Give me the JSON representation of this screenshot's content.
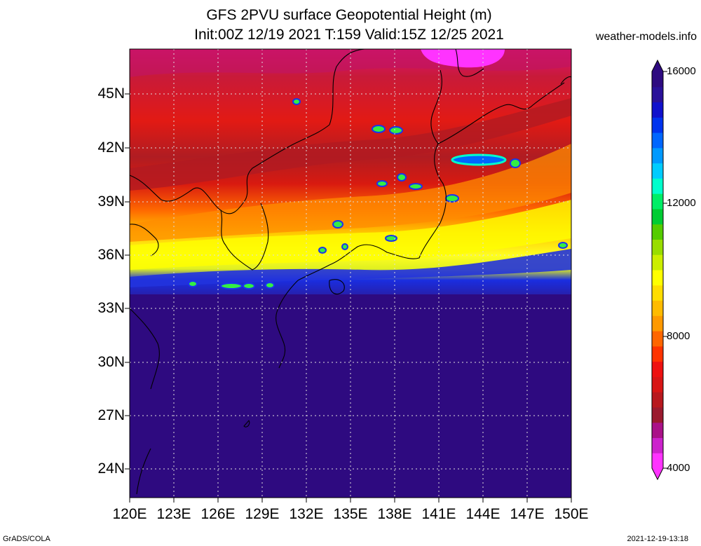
{
  "header": {
    "title_line1": "GFS 2PVU surface Geopotential Height (m)",
    "title_line2": "Init:00Z 12/19 2021 T:159 Valid:15Z 12/25 2021",
    "source": "weather-models.info"
  },
  "axes": {
    "lat_labels": [
      "45N",
      "42N",
      "39N",
      "36N",
      "33N",
      "30N",
      "27N",
      "24N"
    ],
    "lon_labels": [
      "120E",
      "123E",
      "126E",
      "129E",
      "132E",
      "135E",
      "138E",
      "141E",
      "144E",
      "147E",
      "150E"
    ]
  },
  "colorbar": {
    "labels": [
      "16000",
      "12000",
      "8000",
      "4000"
    ],
    "colors": [
      "#ff33ff",
      "#cc22cc",
      "#aa1188",
      "#9b1a2e",
      "#b8181e",
      "#d81515",
      "#ee1111",
      "#ff3300",
      "#ff6600",
      "#ff9900",
      "#ffbb00",
      "#ffdd00",
      "#ffff00",
      "#ccee00",
      "#99dd00",
      "#55cc00",
      "#00cc33",
      "#00ee66",
      "#00ffcc",
      "#00ccff",
      "#0099ff",
      "#0066ff",
      "#0033ee",
      "#1111cc",
      "#2a1199",
      "#2e0a80"
    ]
  },
  "footer": {
    "left": "GrADS/COLA",
    "right": "2021-12-19-13:18"
  }
}
